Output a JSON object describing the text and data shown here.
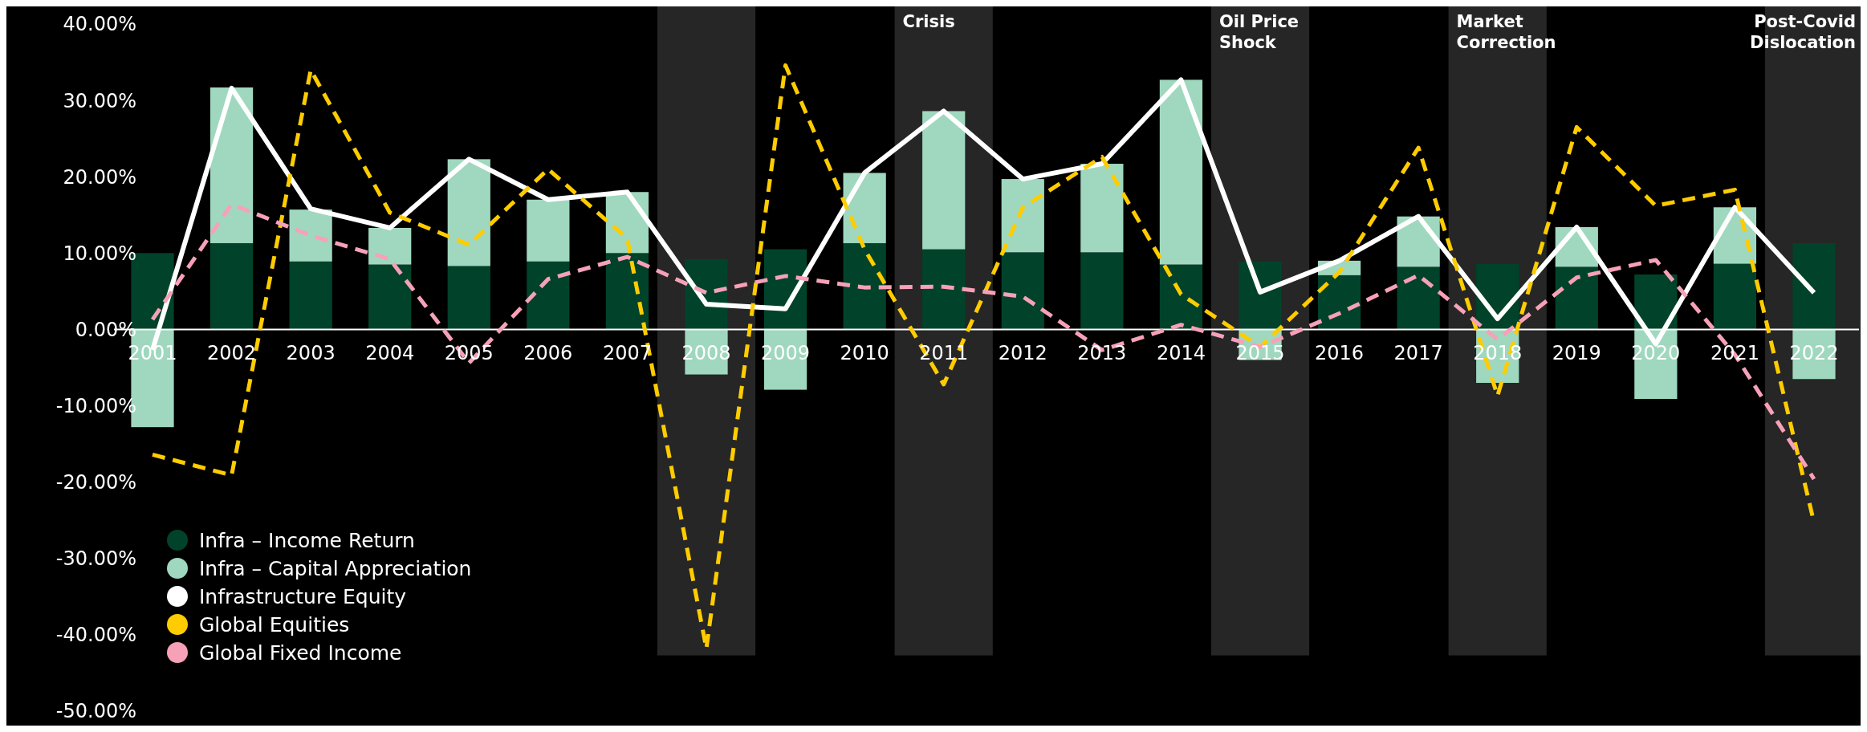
{
  "chart_data": {
    "type": "bar",
    "stacked": true,
    "categories": [
      "2001",
      "2002",
      "2003",
      "2004",
      "2005",
      "2006",
      "2007",
      "2008",
      "2009",
      "2010",
      "2011",
      "2012",
      "2013",
      "2014",
      "2015",
      "2016",
      "2017",
      "2018",
      "2019",
      "2020",
      "2021",
      "2022"
    ],
    "series": [
      {
        "name": "Infra – Income Return",
        "color": "#01432a",
        "values": [
          10.0,
          11.3,
          8.9,
          8.5,
          8.3,
          8.9,
          10.0,
          9.2,
          10.5,
          11.3,
          10.5,
          10.1,
          10.1,
          8.5,
          8.9,
          7.1,
          8.2,
          8.6,
          8.2,
          7.2,
          8.6,
          11.3
        ]
      },
      {
        "name": "Infra – Capital Appreciation",
        "color": "#9fd8bf",
        "values": [
          -12.8,
          20.4,
          6.8,
          4.8,
          14.0,
          8.1,
          8.0,
          -5.9,
          -7.9,
          9.2,
          18.1,
          9.6,
          11.6,
          24.2,
          -4.0,
          1.9,
          6.6,
          -7.0,
          5.2,
          -9.1,
          7.4,
          -6.5
        ]
      },
      {
        "name": "Infrastructure Equity",
        "type": "line",
        "color": "#ffffff",
        "line_style": "solid",
        "values": [
          -2.7,
          31.6,
          15.8,
          13.3,
          22.3,
          17.0,
          18.0,
          3.3,
          2.7,
          20.5,
          28.6,
          19.7,
          21.7,
          32.7,
          4.9,
          9.0,
          14.8,
          1.4,
          13.4,
          -1.9,
          16.0,
          4.8
        ]
      },
      {
        "name": "Global Equities",
        "type": "line",
        "color": "#ffcc00",
        "line_style": "dashed",
        "values": [
          -16.4,
          -19.1,
          34.0,
          15.3,
          11.1,
          21.0,
          11.9,
          -41.8,
          34.6,
          10.5,
          -7.2,
          16.0,
          22.6,
          4.6,
          -2.3,
          7.5,
          23.8,
          -8.7,
          26.5,
          16.2,
          18.3,
          -25.3
        ]
      },
      {
        "name": "Global Fixed Income",
        "type": "line",
        "color": "#f7a1b8",
        "line_style": "dashed",
        "values": [
          1.3,
          16.4,
          12.3,
          9.2,
          -4.4,
          6.6,
          9.5,
          4.8,
          7.0,
          5.5,
          5.6,
          4.3,
          -2.7,
          0.6,
          -2.3,
          2.1,
          7.1,
          -1.3,
          6.8,
          9.1,
          -3.3,
          -19.6
        ]
      }
    ],
    "bands": [
      {
        "axis": "x",
        "from": "2008",
        "to": "2008",
        "color": "#262626"
      },
      {
        "axis": "x",
        "from": "2011",
        "to": "2011",
        "label": "Crisis",
        "color": "#262626"
      },
      {
        "axis": "x",
        "from": "2015",
        "to": "2015",
        "label": "Oil Price Shock",
        "color": "#262626"
      },
      {
        "axis": "x",
        "from": "2018",
        "to": "2018",
        "label": "Market Correction",
        "color": "#262626"
      },
      {
        "axis": "x",
        "from": "2022",
        "to": "2022",
        "label": "Post-Covid Dislocation",
        "color": "#262626"
      }
    ],
    "ylim": [
      -50,
      40
    ],
    "yticks": [
      {
        "value": -50,
        "label": "-50.00%"
      },
      {
        "value": -40,
        "label": "-40.00%"
      },
      {
        "value": -30,
        "label": "-30.00%"
      },
      {
        "value": -20,
        "label": "-20.00%"
      },
      {
        "value": -10,
        "label": "-10.00%"
      },
      {
        "value": 0,
        "label": "0.00%"
      },
      {
        "value": 10,
        "label": "10.00%"
      },
      {
        "value": 20,
        "label": "20.00%"
      },
      {
        "value": 30,
        "label": "30.00%"
      },
      {
        "value": 40,
        "label": "40.00%"
      }
    ],
    "legend": "bottom left"
  }
}
